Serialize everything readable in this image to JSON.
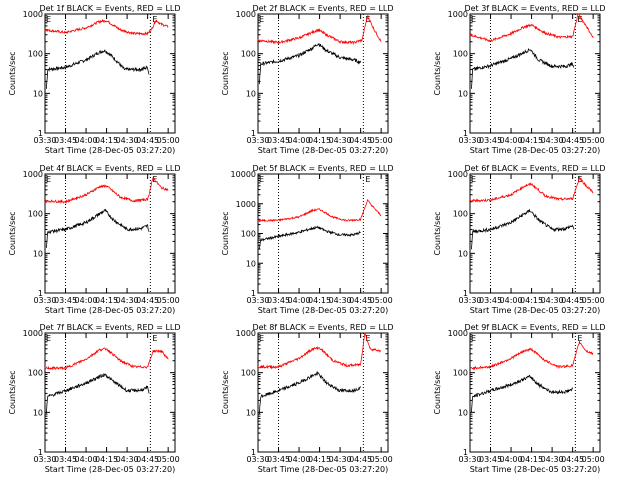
{
  "x_ticks": [
    "03:30",
    "03:45",
    "04:00",
    "04:15",
    "04:30",
    "04:45",
    "05:00"
  ],
  "y_ticks": [
    "1",
    "10",
    "100",
    "1000"
  ],
  "ylabel": "Counts/sec",
  "xlabel": "Start Time (28-Dec-05 03:27:20)",
  "flare_markers": [
    "E",
    "E"
  ],
  "colors": {
    "events": "#000000",
    "lld": "#ff0000"
  },
  "chart_data": [
    {
      "type": "line",
      "title": "Det 1f BLACK = Events, RED = LLD",
      "ylim": [
        1,
        1000
      ],
      "y_scale": "log",
      "xlim": [
        "03:30",
        "05:05"
      ],
      "markers": [
        "03:45",
        "04:47"
      ],
      "series": [
        {
          "name": "BLACK = Events",
          "points": [
            [
              "03:31",
              13
            ],
            [
              "03:32",
              40
            ],
            [
              "03:45",
              45
            ],
            [
              "04:00",
              70
            ],
            [
              "04:10",
              110
            ],
            [
              "04:14",
              120
            ],
            [
              "04:20",
              80
            ],
            [
              "04:28",
              40
            ],
            [
              "04:40",
              40
            ],
            [
              "04:45",
              45
            ],
            [
              "04:46",
              30
            ]
          ]
        },
        {
          "name": "RED = LLD",
          "points": [
            [
              "03:30",
              400
            ],
            [
              "03:45",
              340
            ],
            [
              "04:00",
              450
            ],
            [
              "04:10",
              650
            ],
            [
              "04:15",
              680
            ],
            [
              "04:25",
              400
            ],
            [
              "04:35",
              320
            ],
            [
              "04:45",
              320
            ],
            [
              "04:48",
              420
            ],
            [
              "04:51",
              700
            ],
            [
              "04:55",
              550
            ],
            [
              "05:00",
              480
            ]
          ]
        }
      ]
    },
    {
      "type": "line",
      "title": "Det 2f BLACK = Events, RED = LLD",
      "ylim": [
        1,
        1000
      ],
      "y_scale": "log",
      "xlim": [
        "03:30",
        "05:05"
      ],
      "markers": [
        "03:45",
        "04:47"
      ],
      "series": [
        {
          "name": "BLACK = Events",
          "points": [
            [
              "03:31",
              18
            ],
            [
              "03:32",
              55
            ],
            [
              "03:45",
              65
            ],
            [
              "04:00",
              90
            ],
            [
              "04:10",
              140
            ],
            [
              "04:14",
              180
            ],
            [
              "04:20",
              120
            ],
            [
              "04:30",
              80
            ],
            [
              "04:40",
              70
            ],
            [
              "04:45",
              60
            ]
          ]
        },
        {
          "name": "RED = LLD",
          "points": [
            [
              "03:30",
              220
            ],
            [
              "03:45",
              190
            ],
            [
              "04:00",
              250
            ],
            [
              "04:10",
              350
            ],
            [
              "04:14",
              400
            ],
            [
              "04:20",
              300
            ],
            [
              "04:30",
              200
            ],
            [
              "04:40",
              190
            ],
            [
              "04:46",
              220
            ],
            [
              "04:50",
              900
            ],
            [
              "04:55",
              400
            ],
            [
              "05:00",
              200
            ]
          ]
        }
      ]
    },
    {
      "type": "line",
      "title": "Det 3f BLACK = Events, RED = LLD",
      "ylim": [
        1,
        1000
      ],
      "y_scale": "log",
      "xlim": [
        "03:30",
        "05:05"
      ],
      "markers": [
        "03:45",
        "04:47"
      ],
      "series": [
        {
          "name": "BLACK = Events",
          "points": [
            [
              "03:31",
              13
            ],
            [
              "03:32",
              40
            ],
            [
              "03:45",
              50
            ],
            [
              "04:00",
              75
            ],
            [
              "04:10",
              110
            ],
            [
              "04:14",
              130
            ],
            [
              "04:20",
              70
            ],
            [
              "04:30",
              48
            ],
            [
              "04:40",
              48
            ],
            [
              "04:45",
              55
            ],
            [
              "04:46",
              45
            ]
          ]
        },
        {
          "name": "RED = LLD",
          "points": [
            [
              "03:30",
              300
            ],
            [
              "03:45",
              210
            ],
            [
              "04:00",
              320
            ],
            [
              "04:10",
              480
            ],
            [
              "04:15",
              530
            ],
            [
              "04:25",
              330
            ],
            [
              "04:35",
              260
            ],
            [
              "04:45",
              270
            ],
            [
              "04:49",
              1000
            ],
            [
              "04:55",
              500
            ],
            [
              "05:00",
              250
            ]
          ]
        }
      ]
    },
    {
      "type": "line",
      "title": "Det 4f BLACK = Events, RED = LLD",
      "ylim": [
        1,
        1000
      ],
      "y_scale": "log",
      "xlim": [
        "03:30",
        "05:05"
      ],
      "markers": [
        "03:45",
        "04:47"
      ],
      "series": [
        {
          "name": "BLACK = Events",
          "points": [
            [
              "03:31",
              13
            ],
            [
              "03:32",
              35
            ],
            [
              "03:45",
              40
            ],
            [
              "04:00",
              60
            ],
            [
              "04:10",
              100
            ],
            [
              "04:14",
              120
            ],
            [
              "04:20",
              70
            ],
            [
              "04:30",
              40
            ],
            [
              "04:40",
              42
            ],
            [
              "04:45",
              50
            ],
            [
              "04:46",
              35
            ]
          ]
        },
        {
          "name": "RED = LLD",
          "points": [
            [
              "03:30",
              210
            ],
            [
              "03:45",
              200
            ],
            [
              "04:00",
              300
            ],
            [
              "04:10",
              480
            ],
            [
              "04:15",
              500
            ],
            [
              "04:25",
              260
            ],
            [
              "04:35",
              210
            ],
            [
              "04:45",
              230
            ],
            [
              "04:49",
              800
            ],
            [
              "04:55",
              450
            ],
            [
              "05:00",
              400
            ]
          ]
        }
      ]
    },
    {
      "type": "line",
      "title": "Det 5f BLACK = Events, RED = LLD",
      "ylim": [
        1,
        10000
      ],
      "y_scale": "log",
      "xlim": [
        "03:30",
        "05:05"
      ],
      "markers": [
        "03:45",
        "04:47"
      ],
      "series": [
        {
          "name": "BLACK = Events",
          "points": [
            [
              "03:31",
              30
            ],
            [
              "03:32",
              60
            ],
            [
              "03:45",
              80
            ],
            [
              "04:00",
              110
            ],
            [
              "04:10",
              150
            ],
            [
              "04:14",
              160
            ],
            [
              "04:20",
              120
            ],
            [
              "04:30",
              90
            ],
            [
              "04:40",
              90
            ],
            [
              "04:45",
              110
            ]
          ]
        },
        {
          "name": "RED = LLD",
          "points": [
            [
              "03:30",
              270
            ],
            [
              "03:45",
              280
            ],
            [
              "04:00",
              360
            ],
            [
              "04:10",
              600
            ],
            [
              "04:15",
              650
            ],
            [
              "04:25",
              350
            ],
            [
              "04:35",
              270
            ],
            [
              "04:45",
              300
            ],
            [
              "04:50",
              1300
            ],
            [
              "04:55",
              700
            ],
            [
              "05:00",
              400
            ]
          ]
        }
      ]
    },
    {
      "type": "line",
      "title": "Det 6f BLACK = Events, RED = LLD",
      "ylim": [
        1,
        1000
      ],
      "y_scale": "log",
      "xlim": [
        "03:30",
        "05:05"
      ],
      "markers": [
        "03:45",
        "04:47"
      ],
      "series": [
        {
          "name": "BLACK = Events",
          "points": [
            [
              "03:31",
              13
            ],
            [
              "03:32",
              35
            ],
            [
              "03:45",
              40
            ],
            [
              "04:00",
              60
            ],
            [
              "04:10",
              100
            ],
            [
              "04:14",
              120
            ],
            [
              "04:20",
              70
            ],
            [
              "04:30",
              40
            ],
            [
              "04:40",
              42
            ],
            [
              "04:45",
              50
            ],
            [
              "04:46",
              40
            ]
          ]
        },
        {
          "name": "RED = LLD",
          "points": [
            [
              "03:30",
              210
            ],
            [
              "03:45",
              220
            ],
            [
              "04:00",
              300
            ],
            [
              "04:10",
              500
            ],
            [
              "04:15",
              560
            ],
            [
              "04:25",
              280
            ],
            [
              "04:35",
              230
            ],
            [
              "04:45",
              240
            ],
            [
              "04:50",
              800
            ],
            [
              "04:55",
              500
            ],
            [
              "05:00",
              350
            ]
          ]
        }
      ]
    },
    {
      "type": "line",
      "title": "Det 7f BLACK = Events, RED = LLD",
      "ylim": [
        1,
        1000
      ],
      "y_scale": "log",
      "xlim": [
        "03:30",
        "05:05"
      ],
      "markers": [
        "03:45",
        "04:47"
      ],
      "series": [
        {
          "name": "BLACK = Events",
          "points": [
            [
              "03:31",
              10
            ],
            [
              "03:32",
              25
            ],
            [
              "03:45",
              35
            ],
            [
              "04:00",
              55
            ],
            [
              "04:10",
              80
            ],
            [
              "04:14",
              90
            ],
            [
              "04:20",
              60
            ],
            [
              "04:30",
              35
            ],
            [
              "04:40",
              36
            ],
            [
              "04:45",
              42
            ],
            [
              "04:46",
              30
            ]
          ]
        },
        {
          "name": "RED = LLD",
          "points": [
            [
              "03:30",
              130
            ],
            [
              "03:45",
              130
            ],
            [
              "04:00",
              220
            ],
            [
              "04:10",
              380
            ],
            [
              "04:15",
              400
            ],
            [
              "04:25",
              200
            ],
            [
              "04:35",
              140
            ],
            [
              "04:45",
              140
            ],
            [
              "04:49",
              350
            ],
            [
              "04:55",
              350
            ],
            [
              "05:00",
              220
            ]
          ]
        }
      ]
    },
    {
      "type": "line",
      "title": "Det 8f BLACK = Events, RED = LLD",
      "ylim": [
        1,
        1000
      ],
      "y_scale": "log",
      "xlim": [
        "03:30",
        "05:05"
      ],
      "markers": [
        "03:45",
        "04:47"
      ],
      "series": [
        {
          "name": "BLACK = Events",
          "points": [
            [
              "03:31",
              10
            ],
            [
              "03:32",
              25
            ],
            [
              "03:45",
              35
            ],
            [
              "04:00",
              55
            ],
            [
              "04:10",
              85
            ],
            [
              "04:14",
              95
            ],
            [
              "04:20",
              55
            ],
            [
              "04:30",
              35
            ],
            [
              "04:40",
              36
            ],
            [
              "04:45",
              42
            ]
          ]
        },
        {
          "name": "RED = LLD",
          "points": [
            [
              "03:30",
              140
            ],
            [
              "03:45",
              140
            ],
            [
              "04:00",
              230
            ],
            [
              "04:10",
              400
            ],
            [
              "04:15",
              420
            ],
            [
              "04:25",
              200
            ],
            [
              "04:35",
              150
            ],
            [
              "04:45",
              160
            ],
            [
              "04:48",
              1000
            ],
            [
              "04:52",
              400
            ],
            [
              "05:00",
              350
            ]
          ]
        }
      ]
    },
    {
      "type": "line",
      "title": "Det 9f BLACK = Events, RED = LLD",
      "ylim": [
        1,
        1000
      ],
      "y_scale": "log",
      "xlim": [
        "03:30",
        "05:05"
      ],
      "markers": [
        "03:45",
        "04:47"
      ],
      "series": [
        {
          "name": "BLACK = Events",
          "points": [
            [
              "03:31",
              10
            ],
            [
              "03:32",
              25
            ],
            [
              "03:45",
              35
            ],
            [
              "04:00",
              50
            ],
            [
              "04:10",
              70
            ],
            [
              "04:14",
              80
            ],
            [
              "04:20",
              50
            ],
            [
              "04:30",
              32
            ],
            [
              "04:40",
              33
            ],
            [
              "04:45",
              38
            ]
          ]
        },
        {
          "name": "RED = LLD",
          "points": [
            [
              "03:30",
              130
            ],
            [
              "03:45",
              140
            ],
            [
              "04:00",
              230
            ],
            [
              "04:10",
              360
            ],
            [
              "04:15",
              390
            ],
            [
              "04:25",
              200
            ],
            [
              "04:35",
              140
            ],
            [
              "04:45",
              150
            ],
            [
              "04:50",
              600
            ],
            [
              "04:55",
              350
            ],
            [
              "05:00",
              300
            ]
          ]
        }
      ]
    }
  ]
}
